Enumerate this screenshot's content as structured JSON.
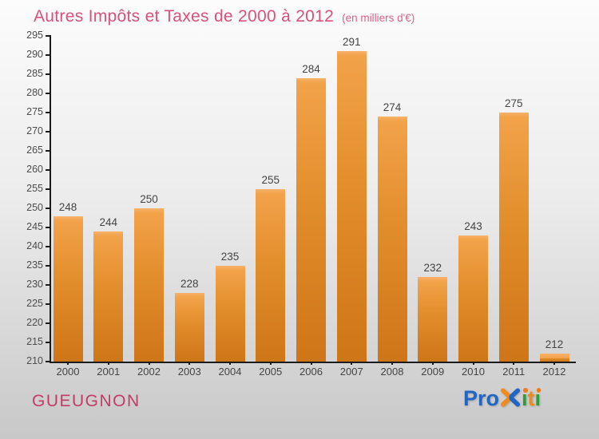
{
  "header": {
    "title": "Autres Impôts et Taxes de 2000 à 2012",
    "subtitle": "(en milliers d'€)"
  },
  "chart_data": {
    "type": "bar",
    "title": "Autres Impôts et Taxes de 2000 à 2012",
    "subtitle": "(en milliers d'€)",
    "categories": [
      "2000",
      "2001",
      "2002",
      "2003",
      "2004",
      "2005",
      "2006",
      "2007",
      "2008",
      "2009",
      "2010",
      "2011",
      "2012"
    ],
    "values": [
      248,
      244,
      250,
      228,
      235,
      255,
      284,
      291,
      274,
      232,
      243,
      275,
      212
    ],
    "ylim": [
      210,
      295
    ],
    "ytick_step": 5,
    "grid": false,
    "legend": false,
    "value_labels": true,
    "bar_color_top": "#f2a249",
    "bar_color_bottom": "#ce7518"
  },
  "footer": {
    "location": "GUEUGNON",
    "logo": {
      "text": "Proxiti",
      "letters": [
        {
          "ch": "P",
          "color": "#2166c4"
        },
        {
          "ch": "r",
          "color": "#2166c4"
        },
        {
          "ch": "o",
          "color": "#2166c4"
        },
        {
          "ch": "x",
          "color": "x-mark"
        },
        {
          "ch": "i",
          "color": "#2f9e38",
          "dot": "#ef7d1d"
        },
        {
          "ch": "t",
          "color": "#f0891e"
        },
        {
          "ch": "i",
          "color": "#2f9e38",
          "dot": "#ef7d1d"
        }
      ],
      "x_left_color": "#f0891e",
      "x_right_color": "#2166c4"
    }
  },
  "colors": {
    "title_pink": "#d8517a",
    "location_pink": "#c23c66",
    "axis": "#1b1b1b",
    "label_gray": "#444444",
    "background_top": "#fcfcfc",
    "background_bottom": "#c8c8c8"
  }
}
